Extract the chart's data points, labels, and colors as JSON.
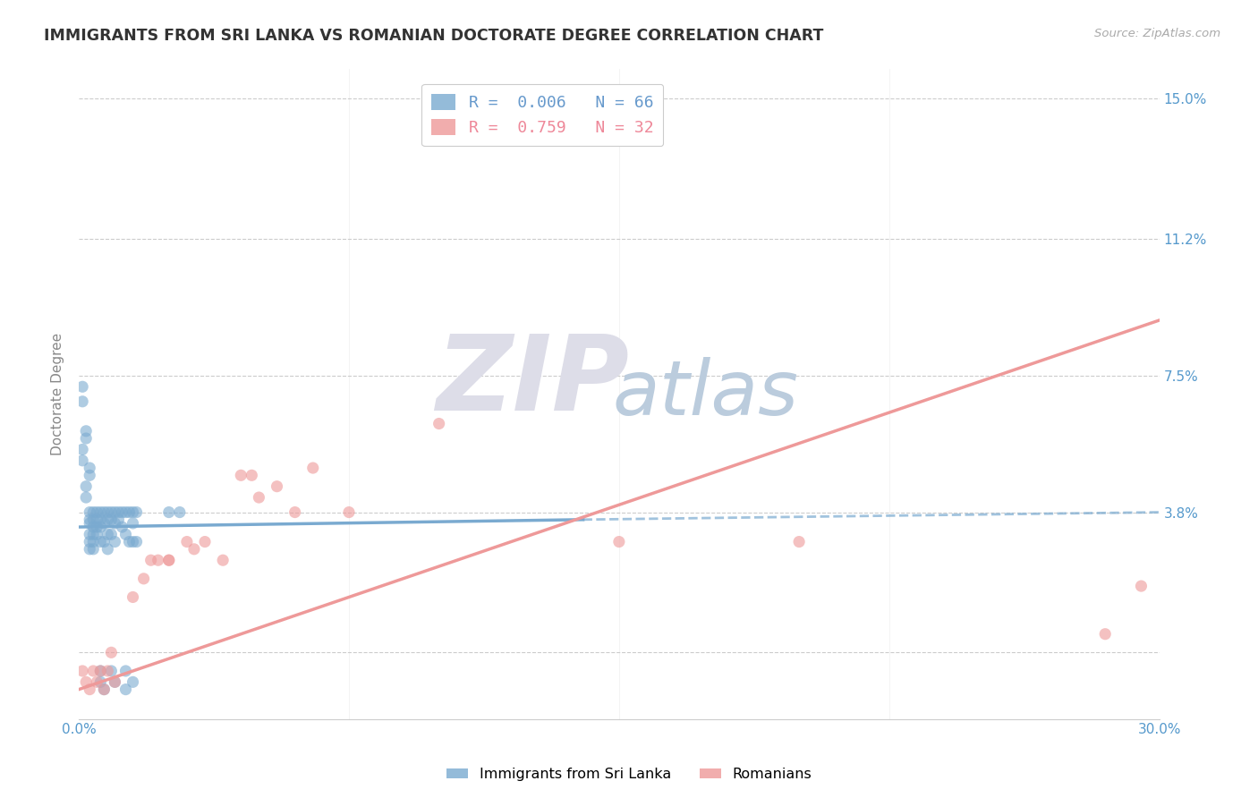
{
  "title": "IMMIGRANTS FROM SRI LANKA VS ROMANIAN DOCTORATE DEGREE CORRELATION CHART",
  "source": "Source: ZipAtlas.com",
  "ylabel": "Doctorate Degree",
  "xlim": [
    0.0,
    0.3
  ],
  "ylim": [
    -0.018,
    0.158
  ],
  "yticks": [
    0.0,
    0.038,
    0.075,
    0.112,
    0.15
  ],
  "ytick_labels": [
    "",
    "3.8%",
    "7.5%",
    "11.2%",
    "15.0%"
  ],
  "xticks": [
    0.0,
    0.075,
    0.15,
    0.225,
    0.3
  ],
  "xtick_labels": [
    "0.0%",
    "",
    "",
    "",
    "30.0%"
  ],
  "legend_entries": [
    {
      "label": "R =  0.006   N = 66",
      "color": "#6699CC"
    },
    {
      "label": "R =  0.759   N = 32",
      "color": "#EE8899"
    }
  ],
  "sri_lanka_color": "#7AAAD0",
  "romanian_color": "#EE9999",
  "background_color": "#FFFFFF",
  "grid_color": "#CCCCCC",
  "tick_label_color": "#5599CC",
  "watermark_zip_color": "#DDDDEE",
  "watermark_atlas_color": "#CCCCDD",
  "sri_lanka_points": [
    [
      0.001,
      0.072
    ],
    [
      0.001,
      0.068
    ],
    [
      0.001,
      0.055
    ],
    [
      0.001,
      0.052
    ],
    [
      0.002,
      0.06
    ],
    [
      0.002,
      0.058
    ],
    [
      0.002,
      0.045
    ],
    [
      0.002,
      0.042
    ],
    [
      0.003,
      0.05
    ],
    [
      0.003,
      0.048
    ],
    [
      0.003,
      0.038
    ],
    [
      0.003,
      0.036
    ],
    [
      0.003,
      0.035
    ],
    [
      0.003,
      0.032
    ],
    [
      0.003,
      0.03
    ],
    [
      0.003,
      0.028
    ],
    [
      0.004,
      0.038
    ],
    [
      0.004,
      0.036
    ],
    [
      0.004,
      0.034
    ],
    [
      0.004,
      0.032
    ],
    [
      0.004,
      0.03
    ],
    [
      0.004,
      0.028
    ],
    [
      0.005,
      0.038
    ],
    [
      0.005,
      0.036
    ],
    [
      0.005,
      0.034
    ],
    [
      0.005,
      0.032
    ],
    [
      0.006,
      0.038
    ],
    [
      0.006,
      0.036
    ],
    [
      0.006,
      0.034
    ],
    [
      0.006,
      0.03
    ],
    [
      0.006,
      -0.005
    ],
    [
      0.006,
      -0.008
    ],
    [
      0.007,
      0.038
    ],
    [
      0.007,
      0.035
    ],
    [
      0.007,
      0.03
    ],
    [
      0.007,
      -0.01
    ],
    [
      0.008,
      0.038
    ],
    [
      0.008,
      0.036
    ],
    [
      0.008,
      0.032
    ],
    [
      0.008,
      0.028
    ],
    [
      0.009,
      0.038
    ],
    [
      0.009,
      0.036
    ],
    [
      0.009,
      0.032
    ],
    [
      0.009,
      -0.005
    ],
    [
      0.01,
      0.038
    ],
    [
      0.01,
      0.035
    ],
    [
      0.01,
      0.03
    ],
    [
      0.01,
      -0.008
    ],
    [
      0.011,
      0.038
    ],
    [
      0.011,
      0.036
    ],
    [
      0.012,
      0.038
    ],
    [
      0.012,
      0.034
    ],
    [
      0.013,
      0.038
    ],
    [
      0.013,
      0.032
    ],
    [
      0.013,
      -0.005
    ],
    [
      0.013,
      -0.01
    ],
    [
      0.014,
      0.038
    ],
    [
      0.014,
      0.03
    ],
    [
      0.015,
      0.038
    ],
    [
      0.015,
      0.035
    ],
    [
      0.015,
      0.03
    ],
    [
      0.015,
      -0.008
    ],
    [
      0.016,
      0.038
    ],
    [
      0.016,
      0.03
    ],
    [
      0.025,
      0.038
    ],
    [
      0.028,
      0.038
    ]
  ],
  "romanian_points": [
    [
      0.001,
      -0.005
    ],
    [
      0.002,
      -0.008
    ],
    [
      0.003,
      -0.01
    ],
    [
      0.004,
      -0.005
    ],
    [
      0.005,
      -0.008
    ],
    [
      0.006,
      -0.005
    ],
    [
      0.007,
      -0.01
    ],
    [
      0.008,
      -0.005
    ],
    [
      0.009,
      0.0
    ],
    [
      0.01,
      -0.008
    ],
    [
      0.015,
      0.015
    ],
    [
      0.018,
      0.02
    ],
    [
      0.02,
      0.025
    ],
    [
      0.022,
      0.025
    ],
    [
      0.025,
      0.025
    ],
    [
      0.025,
      0.025
    ],
    [
      0.03,
      0.03
    ],
    [
      0.032,
      0.028
    ],
    [
      0.035,
      0.03
    ],
    [
      0.04,
      0.025
    ],
    [
      0.045,
      0.048
    ],
    [
      0.048,
      0.048
    ],
    [
      0.05,
      0.042
    ],
    [
      0.055,
      0.045
    ],
    [
      0.06,
      0.038
    ],
    [
      0.065,
      0.05
    ],
    [
      0.075,
      0.038
    ],
    [
      0.1,
      0.062
    ],
    [
      0.15,
      0.03
    ],
    [
      0.2,
      0.03
    ],
    [
      0.285,
      0.005
    ],
    [
      0.295,
      0.018
    ]
  ],
  "sri_lanka_line": {
    "x0": 0.0,
    "y0": 0.034,
    "x1": 0.14,
    "y1": 0.036
  },
  "sri_lanka_dashed_line": {
    "x0": 0.14,
    "y0": 0.036,
    "x1": 0.3,
    "y1": 0.038
  },
  "romanian_line": {
    "x0": 0.0,
    "y0": -0.01,
    "x1": 0.3,
    "y1": 0.09
  }
}
